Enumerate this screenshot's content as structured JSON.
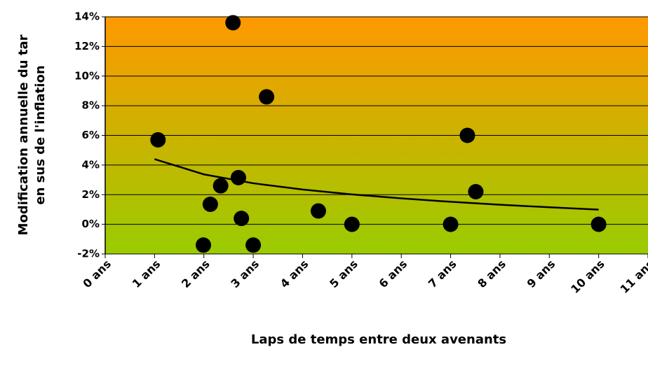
{
  "chart_data": {
    "type": "scatter",
    "x_label": "Laps de temps entre deux avenants",
    "y_label": [
      "Modification annuelle du tar",
      "en sus de l'inflation"
    ],
    "xlim": [
      0,
      11
    ],
    "ylim": [
      -2,
      14
    ],
    "xticks": [
      {
        "value": 0,
        "label": "0 ans"
      },
      {
        "value": 1,
        "label": "1 ans"
      },
      {
        "value": 2,
        "label": "2 ans"
      },
      {
        "value": 3,
        "label": "3 ans"
      },
      {
        "value": 4,
        "label": "4 ans"
      },
      {
        "value": 5,
        "label": "5 ans"
      },
      {
        "value": 6,
        "label": "6 ans"
      },
      {
        "value": 7,
        "label": "7 ans"
      },
      {
        "value": 8,
        "label": "8 ans"
      },
      {
        "value": 9,
        "label": "9 ans"
      },
      {
        "value": 10,
        "label": "10 ans"
      },
      {
        "value": 11,
        "label": "11 ans"
      }
    ],
    "yticks": [
      {
        "value": -2,
        "label": "-2%"
      },
      {
        "value": 0,
        "label": "0%"
      },
      {
        "value": 2,
        "label": "2%"
      },
      {
        "value": 4,
        "label": "4%"
      },
      {
        "value": 6,
        "label": "6%"
      },
      {
        "value": 8,
        "label": "8%"
      },
      {
        "value": 10,
        "label": "10%"
      },
      {
        "value": 12,
        "label": "12%"
      },
      {
        "value": 14,
        "label": "14%"
      }
    ],
    "grid": true,
    "color": "#000000",
    "background": [
      "#ff9900",
      "#99cc00"
    ],
    "x": [
      1.07,
      2.59,
      3.27,
      2.13,
      2.34,
      2.7,
      2.76,
      1.99,
      3.0,
      4.32,
      5.0,
      7.0,
      7.34,
      7.51,
      10.0
    ],
    "values": [
      5.7,
      13.6,
      8.6,
      1.35,
      2.6,
      3.15,
      0.4,
      -1.4,
      -1.4,
      0.9,
      0,
      0,
      6.0,
      2.2,
      0
    ],
    "trend": {
      "color": "#000000",
      "x": [
        1,
        2,
        3,
        4,
        5,
        6,
        7,
        8,
        9,
        10
      ],
      "values": [
        4.4,
        3.37,
        2.77,
        2.35,
        2.02,
        1.75,
        1.52,
        1.32,
        1.15,
        0.99
      ]
    }
  }
}
